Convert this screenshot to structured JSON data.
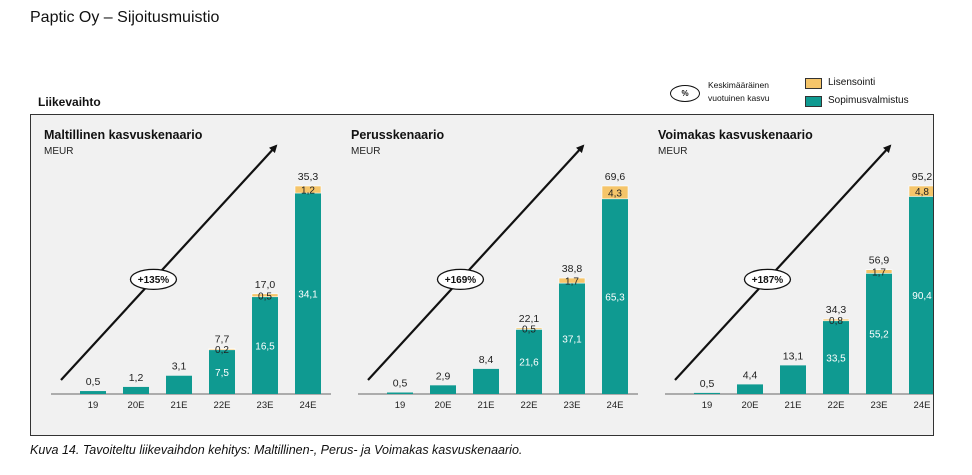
{
  "header": {
    "title": "Paptic Oy – Sijoitusmuistio"
  },
  "section_title": "Liikevaihto",
  "legend": {
    "growth_symbol": "%",
    "growth_label_line1": "Keskimääräinen",
    "growth_label_line2": "vuotuinen kasvu",
    "licensing": "Lisensointi",
    "contract": "Sopimusvalmistus"
  },
  "colors": {
    "licensing": "#f5c56a",
    "contract": "#0f9a91",
    "arrow": "#111111"
  },
  "caption": "Kuva 14. Tavoiteltu liikevaihdon kehitys: Maltillinen-, Perus- ja Voimakas kasvuskenaario.",
  "chart_data": [
    {
      "type": "bar",
      "title": "Maltillinen kasvuskenaario",
      "unit": "MEUR",
      "growth": "+135%",
      "categories": [
        "19",
        "20E",
        "21E",
        "22E",
        "23E",
        "24E"
      ],
      "series": [
        {
          "name": "Sopimusvalmistus",
          "values": [
            0.5,
            1.2,
            3.1,
            7.5,
            16.5,
            34.1
          ],
          "labels": [
            "",
            "",
            "",
            "7,5",
            "16,5",
            "34,1"
          ]
        },
        {
          "name": "Lisensointi",
          "values": [
            0,
            0,
            0,
            0.2,
            0.5,
            1.2
          ],
          "labels": [
            "",
            "",
            "",
            "0,2",
            "0,5",
            "1,2"
          ]
        }
      ],
      "totals": [
        "0,5",
        "1,2",
        "3,1",
        "7,7",
        "17,0",
        "35,3"
      ],
      "total_values": [
        0.5,
        1.2,
        3.1,
        7.7,
        17.0,
        35.3
      ]
    },
    {
      "type": "bar",
      "title": "Perusskenaario",
      "unit": "MEUR",
      "growth": "+169%",
      "categories": [
        "19",
        "20E",
        "21E",
        "22E",
        "23E",
        "24E"
      ],
      "series": [
        {
          "name": "Sopimusvalmistus",
          "values": [
            0.5,
            2.9,
            8.4,
            21.6,
            37.1,
            65.3
          ],
          "labels": [
            "",
            "",
            "",
            "21,6",
            "37,1",
            "65,3"
          ]
        },
        {
          "name": "Lisensointi",
          "values": [
            0,
            0,
            0,
            0.5,
            1.7,
            4.3
          ],
          "labels": [
            "",
            "",
            "",
            "0,5",
            "1,7",
            "4,3"
          ]
        }
      ],
      "totals": [
        "0,5",
        "2,9",
        "8,4",
        "22,1",
        "38,8",
        "69,6"
      ],
      "total_values": [
        0.5,
        2.9,
        8.4,
        22.1,
        38.8,
        69.6
      ]
    },
    {
      "type": "bar",
      "title": "Voimakas kasvuskenaario",
      "unit": "MEUR",
      "growth": "+187%",
      "categories": [
        "19",
        "20E",
        "21E",
        "22E",
        "23E",
        "24E"
      ],
      "series": [
        {
          "name": "Sopimusvalmistus",
          "values": [
            0.5,
            4.4,
            13.1,
            33.5,
            55.2,
            90.4
          ],
          "labels": [
            "",
            "",
            "",
            "33,5",
            "55,2",
            "90,4"
          ]
        },
        {
          "name": "Lisensointi",
          "values": [
            0,
            0,
            0,
            0.8,
            1.7,
            4.8
          ],
          "labels": [
            "",
            "",
            "",
            "0,8",
            "1,7",
            "4,8"
          ]
        }
      ],
      "totals": [
        "0,5",
        "4,4",
        "13,1",
        "34,3",
        "56,9",
        "95,2"
      ],
      "total_values": [
        0.5,
        4.4,
        13.1,
        34.3,
        56.9,
        95.2
      ]
    }
  ]
}
